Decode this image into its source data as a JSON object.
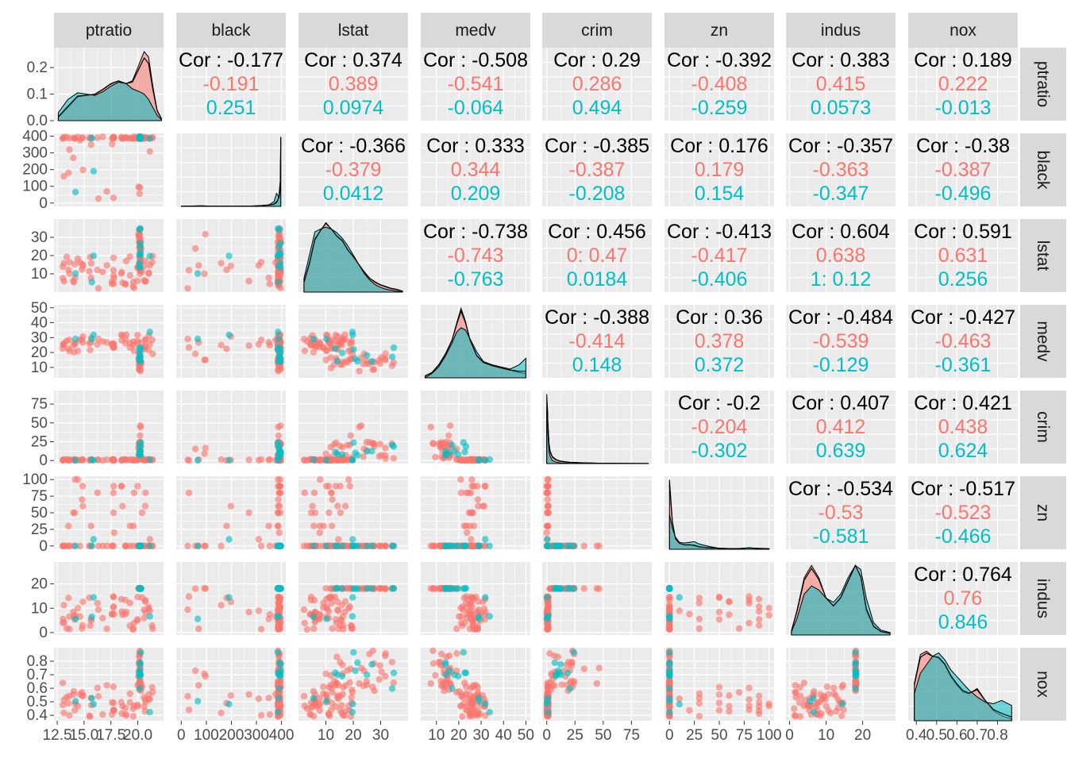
{
  "chart_data": {
    "type": "scatter-matrix",
    "variables": [
      "ptratio",
      "black",
      "lstat",
      "medv",
      "crim",
      "zn",
      "indus",
      "nox"
    ],
    "group_colors": [
      "#F8766D",
      "#00BFC4"
    ],
    "overall_color": "#000000",
    "panel_background": "#EBEBEB",
    "strip_background": "#D9D9D9",
    "grid": true,
    "ranges": {
      "ptratio": [
        12.2,
        22.4
      ],
      "black": [
        -20,
        417
      ],
      "lstat": [
        0,
        40
      ],
      "medv": [
        3,
        52
      ],
      "crim": [
        -4,
        93
      ],
      "zn": [
        -5,
        105
      ],
      "indus": [
        -1,
        29
      ],
      "nox": [
        0.36,
        0.9
      ]
    },
    "x_ticks": {
      "ptratio": [
        12.5,
        15.0,
        17.5,
        20.0
      ],
      "black": [
        0,
        100,
        200,
        300,
        400
      ],
      "lstat": [
        10,
        20,
        30
      ],
      "medv": [
        10,
        20,
        30,
        40,
        50
      ],
      "crim": [
        0,
        25,
        50,
        75
      ],
      "zn": [
        0,
        25,
        50,
        75,
        100
      ],
      "indus": [
        0,
        10,
        20
      ],
      "nox": [
        0.4,
        0.5,
        0.6,
        0.7,
        0.8
      ]
    },
    "x_tick_labels": {
      "ptratio": [
        "12.5",
        "15.0",
        "17.5",
        "20.0"
      ],
      "black": [
        "0",
        "100",
        "200",
        "300",
        "400"
      ],
      "lstat": [
        "10",
        "20",
        "30"
      ],
      "medv": [
        "10",
        "20",
        "30",
        "40",
        "50"
      ],
      "crim": [
        "0",
        "25",
        "50",
        "75"
      ],
      "zn": [
        "0",
        "25",
        "50",
        "75",
        "100"
      ],
      "indus": [
        "0",
        "10",
        "20"
      ],
      "nox": [
        "0.4",
        "0.5",
        "0.6",
        "0.7",
        "0.8"
      ]
    },
    "y_ticks": {
      "ptratio": [
        0.0,
        0.1,
        0.2
      ],
      "black": [
        0,
        100,
        200,
        300,
        400
      ],
      "lstat": [
        10,
        20,
        30
      ],
      "medv": [
        10,
        20,
        30,
        40,
        50
      ],
      "crim": [
        0,
        25,
        50,
        75
      ],
      "zn": [
        0,
        25,
        50,
        75,
        100
      ],
      "indus": [
        0,
        10,
        20
      ],
      "nox": [
        0.4,
        0.5,
        0.6,
        0.7,
        0.8
      ]
    },
    "y_tick_labels": {
      "ptratio": [
        "0.0",
        "0.1",
        "0.2"
      ],
      "black": [
        "0",
        "100",
        "200",
        "300",
        "400"
      ],
      "lstat": [
        "10",
        "20",
        "30"
      ],
      "medv": [
        "10",
        "20",
        "30",
        "40",
        "50"
      ],
      "crim": [
        "0",
        "25",
        "50",
        "75"
      ],
      "zn": [
        "0",
        "25",
        "50",
        "75",
        "100"
      ],
      "indus": [
        "0",
        "10",
        "20"
      ],
      "nox": [
        "0.4",
        "0.5",
        "0.6",
        "0.7",
        "0.8"
      ]
    },
    "correlations": [
      {
        "row": "ptratio",
        "col": "black",
        "overall": "Cor : -0.177",
        "g1": "-0.191",
        "g2": "0.251"
      },
      {
        "row": "ptratio",
        "col": "lstat",
        "overall": "Cor : 0.374",
        "g1": "0.389",
        "g2": "0.0974"
      },
      {
        "row": "ptratio",
        "col": "medv",
        "overall": "Cor : -0.508",
        "g1": "-0.541",
        "g2": "-0.064"
      },
      {
        "row": "ptratio",
        "col": "crim",
        "overall": "Cor : 0.29",
        "g1": "0.286",
        "g2": "0.494"
      },
      {
        "row": "ptratio",
        "col": "zn",
        "overall": "Cor : -0.392",
        "g1": "-0.408",
        "g2": "-0.259"
      },
      {
        "row": "ptratio",
        "col": "indus",
        "overall": "Cor : 0.383",
        "g1": "0.415",
        "g2": "0.0573"
      },
      {
        "row": "ptratio",
        "col": "nox",
        "overall": "Cor : 0.189",
        "g1": "0.222",
        "g2": "-0.013"
      },
      {
        "row": "black",
        "col": "lstat",
        "overall": "Cor : -0.366",
        "g1": "-0.379",
        "g2": "0.0412"
      },
      {
        "row": "black",
        "col": "medv",
        "overall": "Cor : 0.333",
        "g1": "0.344",
        "g2": "0.209"
      },
      {
        "row": "black",
        "col": "crim",
        "overall": "Cor : -0.385",
        "g1": "-0.387",
        "g2": "-0.208"
      },
      {
        "row": "black",
        "col": "zn",
        "overall": "Cor : 0.176",
        "g1": "0.179",
        "g2": "0.154"
      },
      {
        "row": "black",
        "col": "indus",
        "overall": "Cor : -0.357",
        "g1": "-0.363",
        "g2": "-0.347"
      },
      {
        "row": "black",
        "col": "nox",
        "overall": "Cor : -0.38",
        "g1": "-0.387",
        "g2": "-0.496"
      },
      {
        "row": "lstat",
        "col": "medv",
        "overall": "Cor : -0.738",
        "g1": "-0.743",
        "g2": "-0.763"
      },
      {
        "row": "lstat",
        "col": "crim",
        "overall": "Cor : 0.456",
        "g1": "0: 0.47",
        "g2": "0.0184"
      },
      {
        "row": "lstat",
        "col": "zn",
        "overall": "Cor : -0.413",
        "g1": "-0.417",
        "g2": "-0.406"
      },
      {
        "row": "lstat",
        "col": "indus",
        "overall": "Cor : 0.604",
        "g1": "0.638",
        "g2": "1: 0.12"
      },
      {
        "row": "lstat",
        "col": "nox",
        "overall": "Cor : 0.591",
        "g1": "0.631",
        "g2": "0.256"
      },
      {
        "row": "medv",
        "col": "crim",
        "overall": "Cor : -0.388",
        "g1": "-0.414",
        "g2": "0.148"
      },
      {
        "row": "medv",
        "col": "zn",
        "overall": "Cor : 0.36",
        "g1": "0.378",
        "g2": "0.372"
      },
      {
        "row": "medv",
        "col": "indus",
        "overall": "Cor : -0.484",
        "g1": "-0.539",
        "g2": "-0.129"
      },
      {
        "row": "medv",
        "col": "nox",
        "overall": "Cor : -0.427",
        "g1": "-0.463",
        "g2": "-0.361"
      },
      {
        "row": "crim",
        "col": "zn",
        "overall": "Cor : -0.2",
        "g1": "-0.204",
        "g2": "-0.302"
      },
      {
        "row": "crim",
        "col": "indus",
        "overall": "Cor : 0.407",
        "g1": "0.412",
        "g2": "0.639"
      },
      {
        "row": "crim",
        "col": "nox",
        "overall": "Cor : 0.421",
        "g1": "0.438",
        "g2": "0.624"
      },
      {
        "row": "zn",
        "col": "indus",
        "overall": "Cor : -0.534",
        "g1": "-0.53",
        "g2": "-0.581"
      },
      {
        "row": "zn",
        "col": "nox",
        "overall": "Cor : -0.517",
        "g1": "-0.523",
        "g2": "-0.466"
      },
      {
        "row": "indus",
        "col": "nox",
        "overall": "Cor : 0.764",
        "g1": "0.76",
        "g2": "0.846"
      }
    ],
    "densities": {
      "ptratio": {
        "x": [
          12.6,
          13.5,
          14.4,
          15.2,
          16.0,
          16.8,
          17.5,
          18.2,
          18.9,
          19.5,
          20.1,
          20.6,
          21.0,
          21.4,
          21.8,
          22.2
        ],
        "g1": [
          0.012,
          0.05,
          0.09,
          0.095,
          0.1,
          0.12,
          0.14,
          0.15,
          0.14,
          0.15,
          0.21,
          0.26,
          0.24,
          0.13,
          0.04,
          0.008
        ],
        "g2": [
          0.03,
          0.08,
          0.105,
          0.1,
          0.095,
          0.11,
          0.13,
          0.145,
          0.14,
          0.12,
          0.11,
          0.1,
          0.08,
          0.05,
          0.02,
          0.004
        ]
      },
      "black": {
        "x": [
          0,
          40,
          80,
          120,
          160,
          200,
          240,
          280,
          320,
          350,
          370,
          380,
          385,
          390,
          395,
          397
        ],
        "g1": [
          0.01,
          0.02,
          0.04,
          0.01,
          0.01,
          0.01,
          0.01,
          0.02,
          0.05,
          0.08,
          0.12,
          0.2,
          0.35,
          0.7,
          1.6,
          4.3
        ],
        "g2": [
          0.0,
          0.005,
          0.01,
          0.005,
          0.005,
          0.005,
          0.005,
          0.01,
          0.05,
          0.1,
          0.3,
          0.8,
          0.7,
          0.5,
          1.2,
          4.2
        ]
      },
      "lstat": {
        "x": [
          2,
          4,
          6,
          8,
          10,
          12,
          14,
          16,
          18,
          20,
          22,
          24,
          26,
          28,
          30,
          32,
          34,
          36,
          38
        ],
        "g1": [
          0.01,
          0.03,
          0.056,
          0.066,
          0.075,
          0.068,
          0.06,
          0.055,
          0.045,
          0.038,
          0.03,
          0.022,
          0.015,
          0.011,
          0.008,
          0.006,
          0.004,
          0.003,
          0.001
        ],
        "g2": [
          0.015,
          0.04,
          0.065,
          0.068,
          0.07,
          0.068,
          0.064,
          0.058,
          0.05,
          0.04,
          0.03,
          0.02,
          0.013,
          0.008,
          0.005,
          0.003,
          0.002,
          0.001,
          0.0
        ]
      },
      "medv": {
        "x": [
          5,
          8,
          11,
          14,
          17,
          19,
          21,
          23,
          25,
          28,
          31,
          35,
          39,
          43,
          47,
          50
        ],
        "g1": [
          0.002,
          0.005,
          0.012,
          0.022,
          0.035,
          0.05,
          0.064,
          0.052,
          0.035,
          0.02,
          0.014,
          0.011,
          0.009,
          0.007,
          0.005,
          0.004
        ],
        "g2": [
          0.0,
          0.004,
          0.01,
          0.02,
          0.032,
          0.042,
          0.046,
          0.044,
          0.036,
          0.024,
          0.015,
          0.012,
          0.01,
          0.008,
          0.012,
          0.018
        ]
      },
      "crim": {
        "x": [
          0,
          0.5,
          1,
          2,
          3,
          5,
          8,
          12,
          20,
          30,
          45,
          60,
          75,
          90
        ],
        "g1": [
          0.38,
          0.42,
          0.3,
          0.15,
          0.09,
          0.05,
          0.03,
          0.018,
          0.01,
          0.006,
          0.003,
          0.002,
          0.001,
          0.0005
        ],
        "g2": [
          0.5,
          0.42,
          0.22,
          0.09,
          0.05,
          0.02,
          0.01,
          0.005,
          0.002,
          0.001,
          0.0,
          0.0,
          0.0,
          0.0
        ]
      },
      "zn": {
        "x": [
          0,
          3,
          6,
          10,
          15,
          20,
          25,
          30,
          40,
          50,
          60,
          70,
          80,
          90,
          100
        ],
        "g1": [
          0.2,
          0.08,
          0.03,
          0.017,
          0.012,
          0.012,
          0.01,
          0.006,
          0.004,
          0.003,
          0.002,
          0.002,
          0.004,
          0.002,
          0.001
        ],
        "g2": [
          0.1,
          0.06,
          0.035,
          0.02,
          0.018,
          0.02,
          0.022,
          0.015,
          0.008,
          0.003,
          0.002,
          0.002,
          0.004,
          0.003,
          0.002
        ]
      },
      "indus": {
        "x": [
          0.5,
          2,
          4,
          6,
          8,
          10,
          12,
          14,
          16,
          18,
          19.5,
          21,
          23,
          25,
          27.5
        ],
        "g1": [
          0.005,
          0.03,
          0.07,
          0.085,
          0.07,
          0.045,
          0.035,
          0.045,
          0.065,
          0.085,
          0.07,
          0.03,
          0.01,
          0.004,
          0.002
        ],
        "g2": [
          0.004,
          0.02,
          0.05,
          0.06,
          0.055,
          0.045,
          0.04,
          0.05,
          0.07,
          0.085,
          0.08,
          0.045,
          0.015,
          0.006,
          0.003
        ]
      },
      "nox": {
        "x": [
          0.39,
          0.42,
          0.45,
          0.48,
          0.51,
          0.54,
          0.57,
          0.6,
          0.63,
          0.66,
          0.7,
          0.74,
          0.78,
          0.82,
          0.87
        ],
        "g1": [
          2.2,
          3.9,
          4.1,
          3.8,
          3.7,
          3.3,
          2.6,
          2.1,
          1.7,
          1.6,
          1.9,
          1.2,
          0.6,
          0.3,
          0.1
        ],
        "g2": [
          1.6,
          2.8,
          3.3,
          3.8,
          4.0,
          3.6,
          3.0,
          2.6,
          2.2,
          1.8,
          1.4,
          1.1,
          1.0,
          1.2,
          0.9
        ]
      }
    }
  }
}
